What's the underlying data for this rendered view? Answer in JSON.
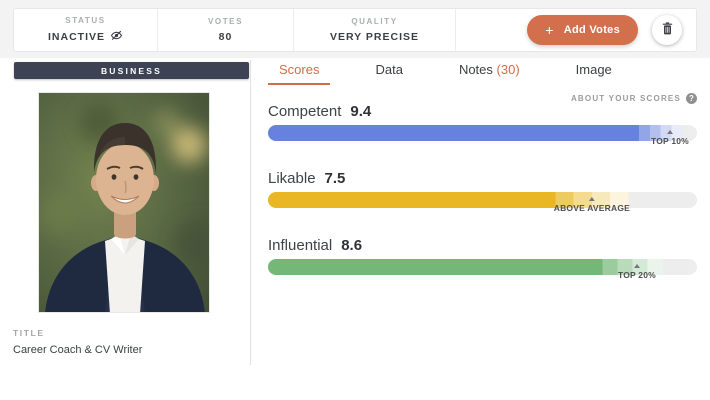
{
  "topbar": {
    "stats": [
      {
        "label": "STATUS",
        "value": "INACTIVE",
        "icon": "eye-off-icon"
      },
      {
        "label": "VOTES",
        "value": "80"
      },
      {
        "label": "QUALITY",
        "value": "VERY PRECISE"
      }
    ],
    "add_votes": {
      "plus": "+",
      "label": "Add Votes",
      "color": "#d36f4d"
    },
    "trash_icon": "trash-icon"
  },
  "left_panel": {
    "category_badge": "BUSINESS",
    "badge_color": "#3d4354",
    "photo_alt": "portrait-photo",
    "title_label": "TITLE",
    "title_value": "Career Coach & CV Writer"
  },
  "tabs": [
    {
      "label": "Scores",
      "active": true
    },
    {
      "label": "Data",
      "active": false
    },
    {
      "label": "Notes",
      "count": "(30)",
      "active": false
    },
    {
      "label": "Image",
      "active": false
    }
  ],
  "about_scores_label": "ABOUT YOUR SCORES",
  "chart_data": {
    "type": "bar",
    "title": "Scores",
    "scale": [
      0,
      10
    ],
    "track_color": "#ededed",
    "accent_color": "#d06c4a",
    "bars": [
      {
        "label": "Competent",
        "value": 9.4,
        "color": "#6782de",
        "fill_pct": 86.5,
        "fade_pct": 10,
        "marker_pct": 93.7,
        "marker_label": "TOP 10%"
      },
      {
        "label": "Likable",
        "value": 7.5,
        "color": "#e8b723",
        "fill_pct": 67,
        "fade_pct": 17,
        "marker_pct": 75.5,
        "marker_label": "ABOVE AVERAGE"
      },
      {
        "label": "Influential",
        "value": 8.6,
        "color": "#74b877",
        "fill_pct": 78,
        "fade_pct": 14,
        "marker_pct": 86,
        "marker_label": "TOP 20%"
      }
    ]
  }
}
